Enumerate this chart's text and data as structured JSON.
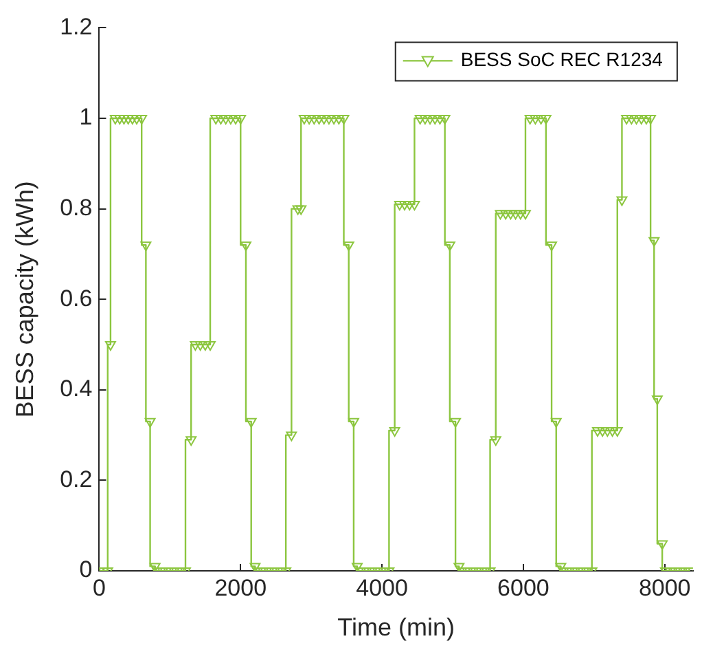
{
  "chart_data": {
    "type": "step",
    "xlabel": "Time (min)",
    "ylabel": "BESS capacity (kWh)",
    "xlim": [
      0,
      8400
    ],
    "xticks": [
      0,
      2000,
      4000,
      6000,
      8000
    ],
    "ylim": [
      0,
      1.2
    ],
    "yticks": [
      0,
      0.2,
      0.4,
      0.6,
      0.8,
      1,
      1.2
    ],
    "grid": false,
    "legend": "top right",
    "marker": "triangle",
    "line_style": "solid",
    "series": [
      {
        "name": "BESS SoC REC R1234",
        "color": "#8cc63f",
        "x": [
          0,
          60,
          120,
          160,
          227,
          290,
          350,
          410,
          470,
          530,
          600,
          660,
          720,
          790,
          820,
          900,
          980,
          1060,
          1140,
          1220,
          1300,
          1360,
          1430,
          1500,
          1570,
          1650,
          1720,
          1790,
          1860,
          1930,
          2000,
          2075,
          2150,
          2205,
          2240,
          2320,
          2400,
          2480,
          2560,
          2640,
          2720,
          2810,
          2855,
          2900,
          2970,
          3040,
          3110,
          3180,
          3250,
          3320,
          3390,
          3460,
          3530,
          3600,
          3650,
          3700,
          3780,
          3860,
          3940,
          4020,
          4100,
          4180,
          4250,
          4320,
          4390,
          4460,
          4540,
          4610,
          4680,
          4750,
          4820,
          4890,
          4960,
          5040,
          5090,
          5130,
          5210,
          5290,
          5370,
          5450,
          5530,
          5610,
          5675,
          5750,
          5820,
          5890,
          5960,
          6030,
          6095,
          6170,
          6250,
          6320,
          6400,
          6465,
          6530,
          6570,
          6650,
          6730,
          6810,
          6890,
          6970,
          7050,
          7120,
          7190,
          7260,
          7330,
          7395,
          7460,
          7530,
          7600,
          7670,
          7740,
          7800,
          7850,
          7895,
          7965,
          8010,
          8080,
          8150,
          8220,
          8290,
          8360
        ],
        "values": [
          0,
          0,
          0,
          0.5,
          1,
          1,
          1,
          1,
          1,
          1,
          1,
          0.72,
          0.33,
          0.01,
          0,
          0,
          0,
          0,
          0,
          0,
          0.29,
          0.5,
          0.5,
          0.5,
          0.5,
          1,
          1,
          1,
          1,
          1,
          1,
          0.72,
          0.33,
          0.01,
          0,
          0,
          0,
          0,
          0,
          0,
          0.3,
          0.8,
          0.8,
          1,
          1,
          1,
          1,
          1,
          1,
          1,
          1,
          1,
          0.72,
          0.33,
          0.01,
          0,
          0,
          0,
          0,
          0,
          0,
          0.31,
          0.81,
          0.81,
          0.81,
          0.81,
          1,
          1,
          1,
          1,
          1,
          1,
          0.72,
          0.33,
          0.01,
          0,
          0,
          0,
          0,
          0,
          0,
          0.29,
          0.79,
          0.79,
          0.79,
          0.79,
          0.79,
          0.79,
          1,
          1,
          1,
          1,
          0.72,
          0.33,
          0.01,
          0,
          0,
          0,
          0,
          0,
          0,
          0.31,
          0.31,
          0.31,
          0.31,
          0.31,
          0.82,
          1,
          1,
          1,
          1,
          1,
          1,
          0.73,
          0.38,
          0.06,
          0,
          0,
          0,
          0,
          0,
          0
        ]
      }
    ]
  }
}
